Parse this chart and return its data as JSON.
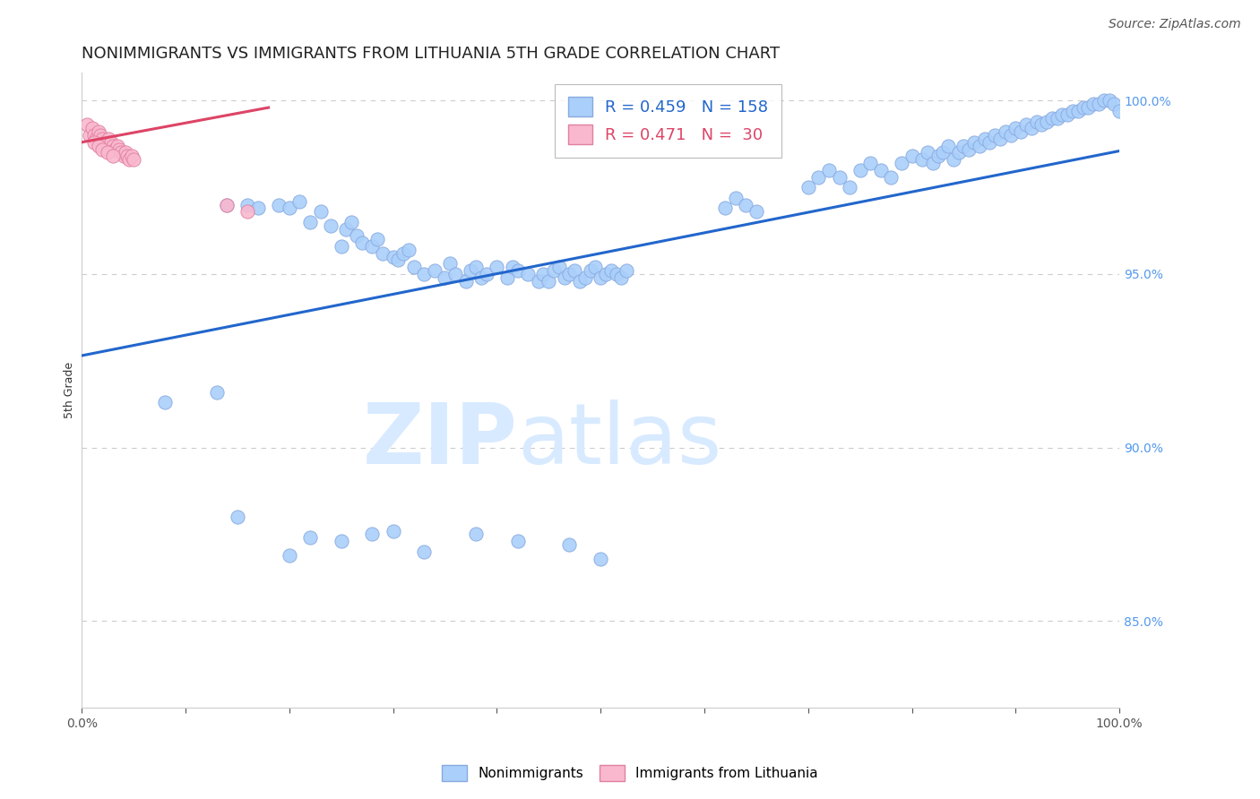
{
  "title": "NONIMMIGRANTS VS IMMIGRANTS FROM LITHUANIA 5TH GRADE CORRELATION CHART",
  "source": "Source: ZipAtlas.com",
  "ylabel": "5th Grade",
  "right_yticks": [
    85.0,
    90.0,
    95.0,
    100.0
  ],
  "xlim": [
    0.0,
    1.0
  ],
  "ylim": [
    0.825,
    1.008
  ],
  "blue_scatter_x": [
    0.08,
    0.13,
    0.14,
    0.16,
    0.17,
    0.19,
    0.2,
    0.21,
    0.22,
    0.23,
    0.24,
    0.25,
    0.255,
    0.26,
    0.265,
    0.27,
    0.28,
    0.285,
    0.29,
    0.3,
    0.305,
    0.31,
    0.315,
    0.32,
    0.33,
    0.34,
    0.35,
    0.355,
    0.36,
    0.37,
    0.375,
    0.38,
    0.385,
    0.39,
    0.4,
    0.41,
    0.415,
    0.42,
    0.43,
    0.44,
    0.445,
    0.45,
    0.455,
    0.46,
    0.465,
    0.47,
    0.475,
    0.48,
    0.485,
    0.49,
    0.495,
    0.5,
    0.505,
    0.51,
    0.515,
    0.52,
    0.525,
    0.62,
    0.63,
    0.64,
    0.65,
    0.7,
    0.71,
    0.72,
    0.73,
    0.74,
    0.75,
    0.76,
    0.77,
    0.78,
    0.79,
    0.8,
    0.81,
    0.815,
    0.82,
    0.825,
    0.83,
    0.835,
    0.84,
    0.845,
    0.85,
    0.855,
    0.86,
    0.865,
    0.87,
    0.875,
    0.88,
    0.885,
    0.89,
    0.895,
    0.9,
    0.905,
    0.91,
    0.915,
    0.92,
    0.925,
    0.93,
    0.935,
    0.94,
    0.945,
    0.95,
    0.955,
    0.96,
    0.965,
    0.97,
    0.975,
    0.98,
    0.985,
    0.99,
    0.995,
    1.0,
    0.15,
    0.2,
    0.22,
    0.25,
    0.28,
    0.3,
    0.33,
    0.38,
    0.42,
    0.47,
    0.5
  ],
  "blue_scatter_y": [
    0.913,
    0.916,
    0.97,
    0.97,
    0.969,
    0.97,
    0.969,
    0.971,
    0.965,
    0.968,
    0.964,
    0.958,
    0.963,
    0.965,
    0.961,
    0.959,
    0.958,
    0.96,
    0.956,
    0.955,
    0.954,
    0.956,
    0.957,
    0.952,
    0.95,
    0.951,
    0.949,
    0.953,
    0.95,
    0.948,
    0.951,
    0.952,
    0.949,
    0.95,
    0.952,
    0.949,
    0.952,
    0.951,
    0.95,
    0.948,
    0.95,
    0.948,
    0.951,
    0.952,
    0.949,
    0.95,
    0.951,
    0.948,
    0.949,
    0.951,
    0.952,
    0.949,
    0.95,
    0.951,
    0.95,
    0.949,
    0.951,
    0.969,
    0.972,
    0.97,
    0.968,
    0.975,
    0.978,
    0.98,
    0.978,
    0.975,
    0.98,
    0.982,
    0.98,
    0.978,
    0.982,
    0.984,
    0.983,
    0.985,
    0.982,
    0.984,
    0.985,
    0.987,
    0.983,
    0.985,
    0.987,
    0.986,
    0.988,
    0.987,
    0.989,
    0.988,
    0.99,
    0.989,
    0.991,
    0.99,
    0.992,
    0.991,
    0.993,
    0.992,
    0.994,
    0.993,
    0.994,
    0.995,
    0.995,
    0.996,
    0.996,
    0.997,
    0.997,
    0.998,
    0.998,
    0.999,
    0.999,
    1.0,
    1.0,
    0.999,
    0.997,
    0.88,
    0.869,
    0.874,
    0.873,
    0.875,
    0.876,
    0.87,
    0.875,
    0.873,
    0.872,
    0.868
  ],
  "pink_scatter_x": [
    0.005,
    0.008,
    0.01,
    0.012,
    0.014,
    0.016,
    0.018,
    0.02,
    0.022,
    0.024,
    0.026,
    0.028,
    0.03,
    0.032,
    0.034,
    0.036,
    0.038,
    0.04,
    0.042,
    0.044,
    0.046,
    0.048,
    0.05,
    0.012,
    0.016,
    0.02,
    0.025,
    0.03,
    0.14,
    0.16
  ],
  "pink_scatter_y": [
    0.993,
    0.99,
    0.992,
    0.99,
    0.989,
    0.991,
    0.99,
    0.989,
    0.988,
    0.987,
    0.989,
    0.988,
    0.987,
    0.986,
    0.987,
    0.986,
    0.985,
    0.984,
    0.985,
    0.984,
    0.983,
    0.984,
    0.983,
    0.988,
    0.987,
    0.986,
    0.985,
    0.984,
    0.97,
    0.968
  ],
  "blue_line_x": [
    0.0,
    1.0
  ],
  "blue_line_y": [
    0.9265,
    0.9855
  ],
  "pink_line_x": [
    0.0,
    0.18
  ],
  "pink_line_y": [
    0.988,
    0.998
  ],
  "scatter_size": 120,
  "blue_color": "#aacffa",
  "blue_edge_color": "#88aae0",
  "pink_color": "#f9b8ce",
  "pink_edge_color": "#e080a0",
  "blue_line_color": "#2266cc",
  "pink_line_color": "#dd4466",
  "background_color": "#ffffff",
  "grid_color": "#cccccc",
  "watermark_zip": "ZIP",
  "watermark_atlas": "atlas",
  "watermark_color": "#d8eaff",
  "title_fontsize": 13,
  "axis_label_fontsize": 9,
  "tick_fontsize": 10,
  "source_fontsize": 10
}
